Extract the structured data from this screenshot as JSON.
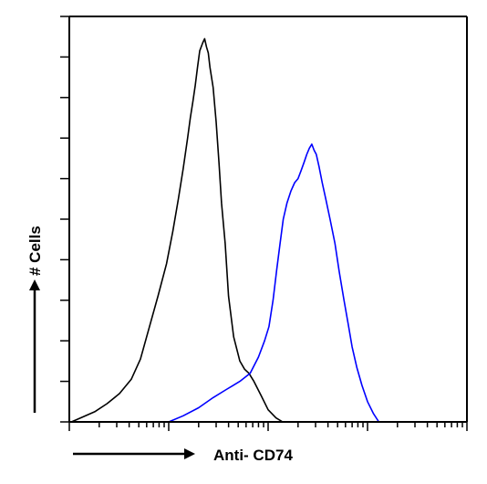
{
  "chart_data": {
    "type": "line",
    "title": "",
    "xlabel": "Anti- CD74",
    "ylabel": "# Cells",
    "x_scale": "log",
    "xlim": [
      1,
      10000
    ],
    "ylim": [
      0,
      200
    ],
    "grid": false,
    "legend": "none",
    "colors": {
      "control": "#000000",
      "antibody": "#0000ff"
    },
    "series": [
      {
        "color": "#000000",
        "points": [
          [
            1.05,
            0
          ],
          [
            1.3,
            2
          ],
          [
            1.8,
            5
          ],
          [
            2.4,
            9
          ],
          [
            3.2,
            14
          ],
          [
            4.2,
            21
          ],
          [
            5.2,
            31
          ],
          [
            6.4,
            47
          ],
          [
            7.8,
            62
          ],
          [
            9.5,
            78
          ],
          [
            11,
            94
          ],
          [
            12.5,
            110
          ],
          [
            14,
            125
          ],
          [
            15.5,
            140
          ],
          [
            16.5,
            150
          ],
          [
            17.5,
            158
          ],
          [
            18.5,
            166
          ],
          [
            19.5,
            175
          ],
          [
            20.5,
            183
          ],
          [
            22,
            187
          ],
          [
            23,
            189
          ],
          [
            24,
            185
          ],
          [
            25,
            182
          ],
          [
            26,
            175
          ],
          [
            28,
            165
          ],
          [
            30,
            148
          ],
          [
            32,
            128
          ],
          [
            34,
            108
          ],
          [
            37,
            88
          ],
          [
            40,
            62
          ],
          [
            45,
            42
          ],
          [
            52,
            30
          ],
          [
            58,
            26
          ],
          [
            64,
            24
          ],
          [
            72,
            20
          ],
          [
            85,
            13
          ],
          [
            100,
            6
          ],
          [
            120,
            2
          ],
          [
            140,
            0
          ]
        ]
      },
      {
        "color": "#0000ff",
        "points": [
          [
            10,
            0
          ],
          [
            14,
            3
          ],
          [
            20,
            7
          ],
          [
            28,
            12
          ],
          [
            38,
            16
          ],
          [
            52,
            20
          ],
          [
            66,
            24
          ],
          [
            80,
            32
          ],
          [
            92,
            40
          ],
          [
            102,
            47
          ],
          [
            112,
            60
          ],
          [
            122,
            75
          ],
          [
            132,
            88
          ],
          [
            142,
            100
          ],
          [
            155,
            108
          ],
          [
            170,
            114
          ],
          [
            185,
            118
          ],
          [
            200,
            120
          ],
          [
            215,
            124
          ],
          [
            230,
            128
          ],
          [
            245,
            132
          ],
          [
            260,
            135
          ],
          [
            275,
            137
          ],
          [
            290,
            134
          ],
          [
            305,
            132
          ],
          [
            325,
            126
          ],
          [
            350,
            118
          ],
          [
            380,
            110
          ],
          [
            420,
            100
          ],
          [
            470,
            88
          ],
          [
            520,
            74
          ],
          [
            580,
            60
          ],
          [
            640,
            48
          ],
          [
            700,
            37
          ],
          [
            780,
            27
          ],
          [
            880,
            18
          ],
          [
            1000,
            10
          ],
          [
            1150,
            4
          ],
          [
            1300,
            0
          ]
        ]
      }
    ]
  }
}
